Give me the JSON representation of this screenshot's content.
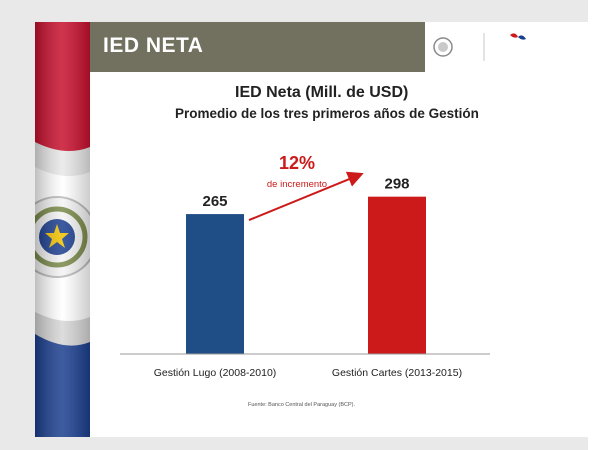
{
  "header": {
    "title": "IED NETA"
  },
  "chart_data": {
    "type": "bar",
    "title": "IED Neta (Mill. de USD)",
    "subtitle": "Promedio de los tres primeros años de Gestión",
    "categories": [
      "Gestión Lugo (2008-2010)",
      "Gestión Cartes (2013-2015)"
    ],
    "values": [
      265,
      298
    ],
    "data_labels": [
      "265",
      "298"
    ],
    "colors": [
      "#1f4e87",
      "#cc1a1a"
    ],
    "ylim": [
      0,
      330
    ],
    "grid": false,
    "annotation": {
      "value": "12%",
      "text": "de incremento",
      "color": "#cc1a1a"
    },
    "source": "Fuente: Banco Central del Paraguay (BCP)."
  },
  "colors": {
    "title_bar": "#72705f",
    "flag_red": "#c8102e",
    "flag_blue": "#1b3f8f"
  }
}
